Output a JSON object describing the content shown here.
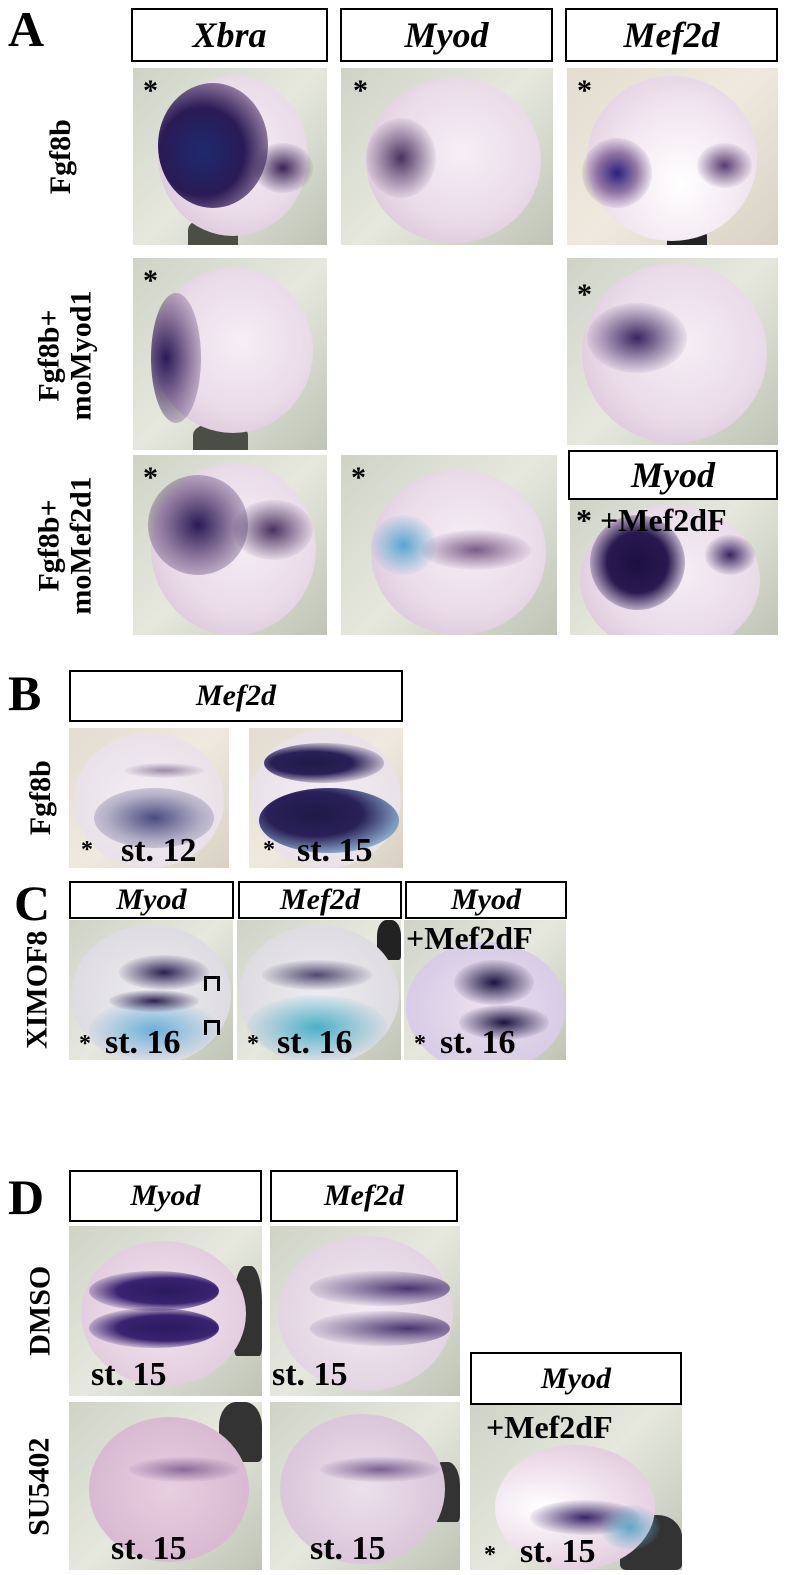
{
  "panel_labels": {
    "a": "A",
    "b": "B",
    "c": "C",
    "d": "D"
  },
  "panel_a": {
    "headers": [
      "Xbra",
      "Myod",
      "Mef2d"
    ],
    "extra_header": "Myod",
    "rows": [
      "Fgf8b",
      "Fgf8b+ moMyod1",
      "Fgf8b+ moMef2d1"
    ],
    "row_lines": [
      [
        "Fgf8b"
      ],
      [
        "Fgf8b+",
        "moMyod1"
      ],
      [
        "Fgf8b+",
        "moMef2d1"
      ]
    ],
    "asterisk": "*",
    "overlay": "+Mef2dF"
  },
  "panel_b": {
    "header": "Mef2d",
    "row": "Fgf8b",
    "asterisk": "*",
    "stages": [
      "st. 12",
      "st. 15"
    ]
  },
  "panel_c": {
    "headers": [
      "Myod",
      "Mef2d",
      "Myod"
    ],
    "row": "XIMOF8",
    "overlay": "+Mef2dF",
    "asterisk": "*",
    "stages": [
      "st. 16",
      "st. 16",
      "st. 16"
    ]
  },
  "panel_d": {
    "headers": [
      "Myod",
      "Mef2d"
    ],
    "extra_header": "Myod",
    "rows": [
      "DMSO",
      "SU5402"
    ],
    "overlay": "+Mef2dF",
    "asterisk": "*",
    "stages": [
      "st. 15",
      "st. 15",
      "st. 15",
      "st. 15",
      "st. 15"
    ]
  },
  "colors": {
    "stain": "#2a1850",
    "embryo": "#eadbe9",
    "blue_stain": "#4aa0c8"
  }
}
